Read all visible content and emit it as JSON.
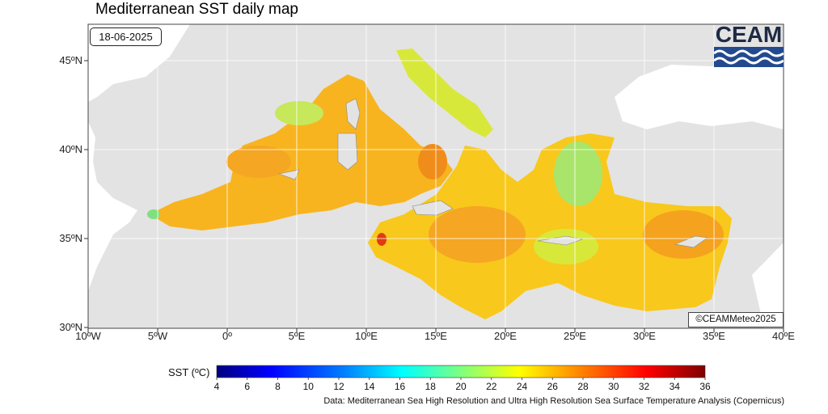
{
  "title": "Mediterranean SST daily map",
  "date": "18-06-2025",
  "copyright": "©CEAMMeteo2025",
  "logo": {
    "text": "CEAM"
  },
  "axes": {
    "lat_labels": [
      "45ºN",
      "40ºN",
      "35ºN",
      "30ºN"
    ],
    "lon_labels": [
      "10ºW",
      "5ºW",
      "0º",
      "5ºE",
      "10ºE",
      "15ºE",
      "20ºE",
      "25ºE",
      "30ºE",
      "35ºE",
      "40ºE"
    ]
  },
  "colorbar": {
    "label": "SST (ºC)",
    "min": 4,
    "max": 36,
    "ticks": [
      "4",
      "6",
      "8",
      "10",
      "12",
      "14",
      "16",
      "18",
      "20",
      "22",
      "24",
      "26",
      "28",
      "30",
      "32",
      "34",
      "36"
    ],
    "colors": [
      "#00007f",
      "#0000ff",
      "#007fff",
      "#00ffff",
      "#7fff7f",
      "#ffff00",
      "#ff7f00",
      "#ff0000",
      "#7f0000"
    ]
  },
  "credit": "Data: Mediterranean Sea High Resolution and Ultra High Resolution Sea Surface Temperature Analysis (Copernicus)",
  "colors": {
    "land": "#e3e3e3",
    "sea_warm": "#f5a623",
    "sea_mid": "#f8d21c",
    "sea_cool": "#b8e85a"
  }
}
